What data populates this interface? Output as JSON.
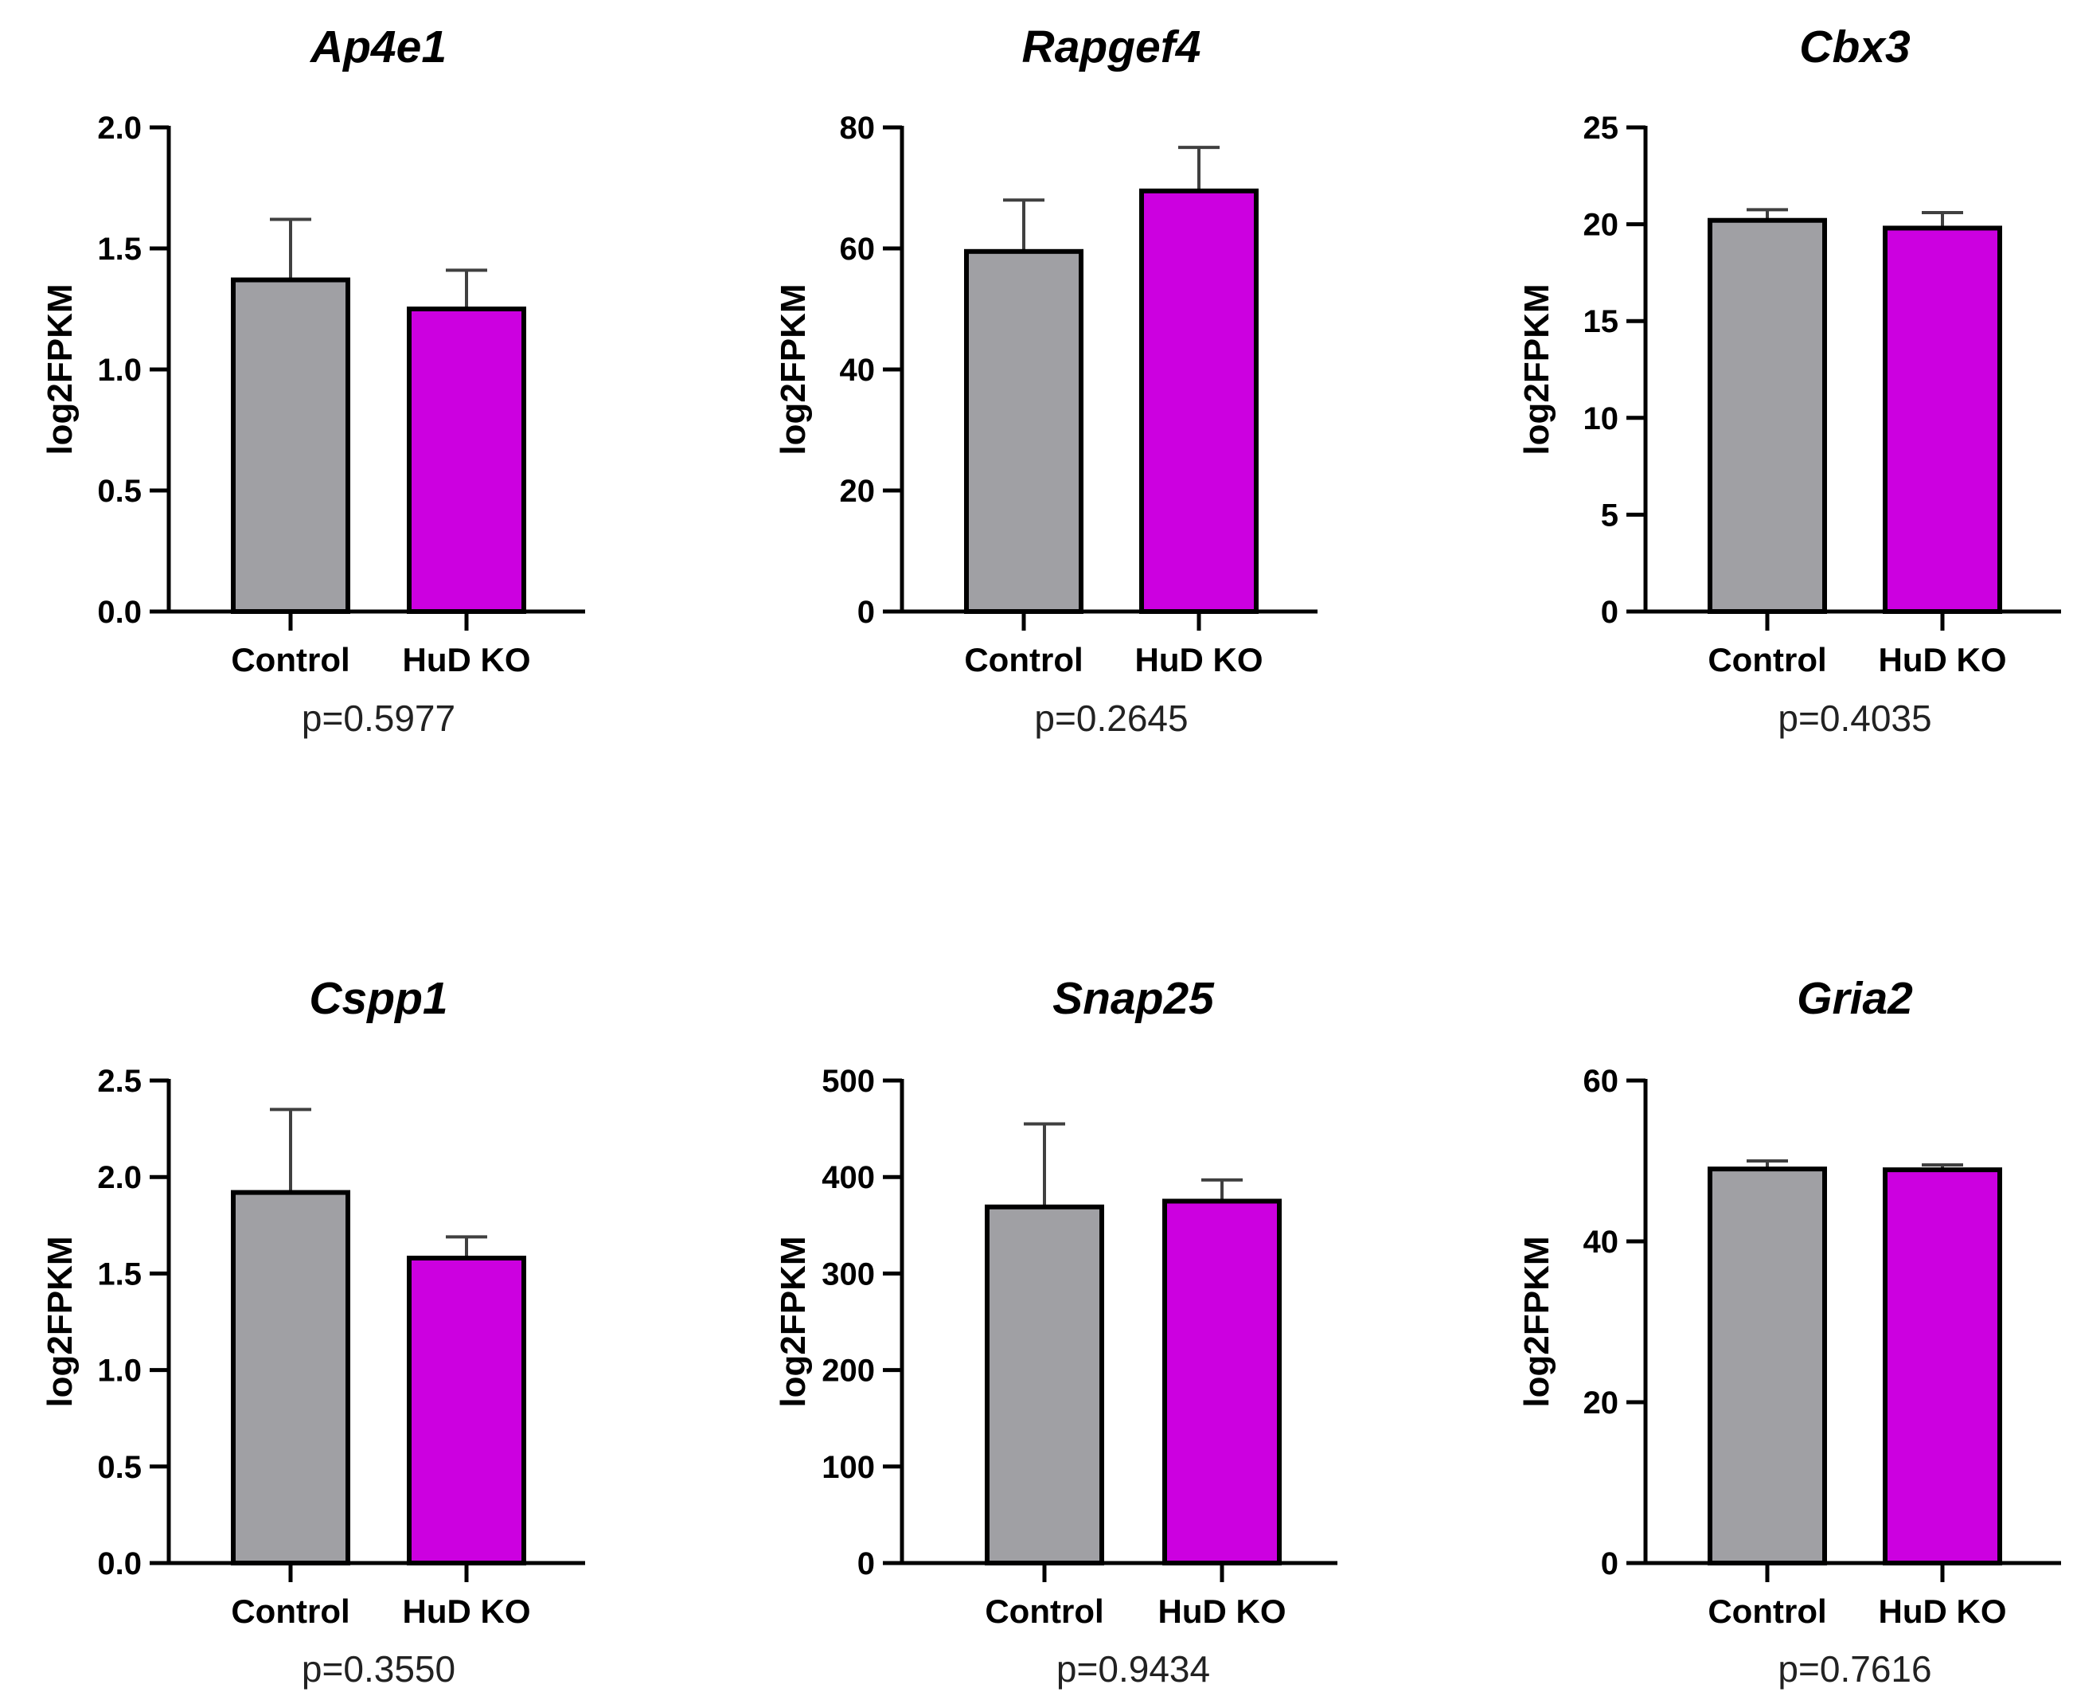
{
  "colors": {
    "control": "#a0a0a4",
    "hud_ko": "#cc00e0",
    "axis": "#000000",
    "error": "#404040"
  },
  "chart_data": [
    {
      "type": "bar",
      "title": "Ap4e1",
      "ylabel": "log2FPKM",
      "categories": [
        "Control",
        "HuD KO"
      ],
      "values": [
        1.37,
        1.25
      ],
      "errors": [
        0.25,
        0.16
      ],
      "ylim": [
        0,
        2.0
      ],
      "ticks": [
        "0.0",
        "0.5",
        "1.0",
        "1.5",
        "2.0"
      ],
      "pvalue": "p=0.5977"
    },
    {
      "type": "bar",
      "title": "Rapgef4",
      "ylabel": "log2FPKM",
      "categories": [
        "Control",
        "HuD KO"
      ],
      "values": [
        59.5,
        69.5
      ],
      "errors": [
        8.5,
        7.2
      ],
      "ylim": [
        0,
        80
      ],
      "ticks": [
        "0",
        "20",
        "40",
        "60",
        "80"
      ],
      "pvalue": "p=0.2645"
    },
    {
      "type": "bar",
      "title": "Cbx3",
      "ylabel": "log2FPKM",
      "categories": [
        "Control",
        "HuD KO"
      ],
      "values": [
        20.2,
        19.8
      ],
      "errors": [
        0.55,
        0.8
      ],
      "ylim": [
        0,
        25
      ],
      "ticks": [
        "0",
        "5",
        "10",
        "15",
        "20",
        "25"
      ],
      "pvalue": "p=0.4035"
    },
    {
      "type": "bar",
      "title": "Cspp1",
      "ylabel": "log2FPKM",
      "categories": [
        "Control",
        "HuD KO"
      ],
      "values": [
        1.92,
        1.58
      ],
      "errors": [
        0.43,
        0.11
      ],
      "ylim": [
        0,
        2.5
      ],
      "ticks": [
        "0.0",
        "0.5",
        "1.0",
        "1.5",
        "2.0",
        "2.5"
      ],
      "pvalue": "p=0.3550"
    },
    {
      "type": "bar",
      "title": "Snap25",
      "ylabel": "log2FPKM",
      "categories": [
        "Control",
        "HuD KO"
      ],
      "values": [
        369,
        375
      ],
      "errors": [
        86,
        22
      ],
      "ylim": [
        0,
        500
      ],
      "ticks": [
        "0",
        "100",
        "200",
        "300",
        "400",
        "500"
      ],
      "pvalue": "p=0.9434"
    },
    {
      "type": "bar",
      "title": "Gria2",
      "ylabel": "log2FPKM",
      "categories": [
        "Control",
        "HuD KO"
      ],
      "values": [
        49.0,
        48.9
      ],
      "errors": [
        1.0,
        0.6
      ],
      "ylim": [
        0,
        60
      ],
      "ticks": [
        "0",
        "20",
        "40",
        "60"
      ],
      "pvalue": "p=0.7616"
    }
  ]
}
